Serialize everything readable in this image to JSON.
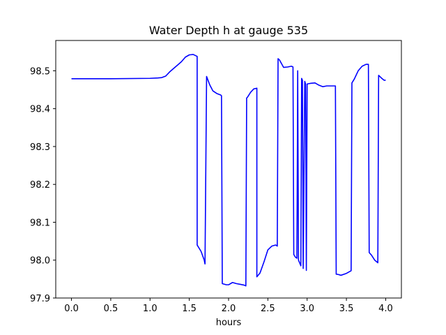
{
  "chart_data": {
    "type": "line",
    "title": "Water Depth h at gauge 535",
    "xlabel": "hours",
    "ylabel": "",
    "xlim": [
      -0.2,
      4.2
    ],
    "ylim": [
      97.9,
      98.58
    ],
    "xticks": [
      0.0,
      0.5,
      1.0,
      1.5,
      2.0,
      2.5,
      3.0,
      3.5,
      4.0
    ],
    "xtick_labels": [
      "0.0",
      "0.5",
      "1.0",
      "1.5",
      "2.0",
      "2.5",
      "3.0",
      "3.5",
      "4.0"
    ],
    "yticks": [
      97.9,
      98.0,
      98.1,
      98.2,
      98.3,
      98.4,
      98.5
    ],
    "ytick_labels": [
      "97.9",
      "98.0",
      "98.1",
      "98.2",
      "98.3",
      "98.4",
      "98.5"
    ],
    "grid": false,
    "series": [
      {
        "color": "#0000ff",
        "x": [
          0.0,
          0.5,
          1.0,
          1.1,
          1.15,
          1.2,
          1.25,
          1.3,
          1.4,
          1.45,
          1.5,
          1.55,
          1.58,
          1.6,
          1.6,
          1.65,
          1.69,
          1.7,
          1.72,
          1.76,
          1.8,
          1.85,
          1.9,
          1.91,
          1.92,
          1.97,
          2.0,
          2.05,
          2.1,
          2.15,
          2.2,
          2.22,
          2.23,
          2.24,
          2.28,
          2.32,
          2.36,
          2.36,
          2.4,
          2.45,
          2.5,
          2.55,
          2.6,
          2.62,
          2.63,
          2.65,
          2.7,
          2.75,
          2.8,
          2.82,
          2.83,
          2.85,
          2.87,
          2.88,
          2.89,
          2.92,
          2.93,
          2.94,
          2.95,
          2.97,
          2.98,
          2.99,
          3.0,
          3.02,
          3.05,
          3.1,
          3.15,
          3.2,
          3.25,
          3.3,
          3.36,
          3.37,
          3.4,
          3.43,
          3.5,
          3.56,
          3.57,
          3.6,
          3.65,
          3.7,
          3.75,
          3.78,
          3.79,
          3.82,
          3.86,
          3.9,
          3.91,
          3.95,
          3.98,
          4.0
        ],
        "y": [
          98.479,
          98.479,
          98.48,
          98.481,
          98.482,
          98.486,
          98.497,
          98.506,
          98.524,
          98.536,
          98.542,
          98.543,
          98.54,
          98.538,
          98.04,
          98.023,
          98.0,
          97.99,
          98.485,
          98.463,
          98.447,
          98.44,
          98.436,
          98.434,
          97.938,
          97.935,
          97.935,
          97.941,
          97.938,
          97.936,
          97.934,
          97.932,
          98.428,
          98.43,
          98.443,
          98.452,
          98.454,
          97.956,
          97.966,
          97.995,
          98.027,
          98.037,
          98.04,
          98.037,
          98.532,
          98.528,
          98.509,
          98.51,
          98.512,
          98.51,
          98.015,
          98.008,
          98.005,
          98.5,
          98.0,
          97.985,
          98.48,
          98.475,
          97.978,
          98.472,
          98.465,
          97.973,
          98.465,
          98.466,
          98.467,
          98.468,
          98.462,
          98.458,
          98.46,
          98.46,
          98.46,
          97.963,
          97.962,
          97.96,
          97.965,
          97.972,
          98.468,
          98.478,
          98.5,
          98.512,
          98.517,
          98.517,
          98.02,
          98.013,
          98.0,
          97.993,
          98.488,
          98.48,
          98.475,
          98.475
        ]
      }
    ]
  }
}
